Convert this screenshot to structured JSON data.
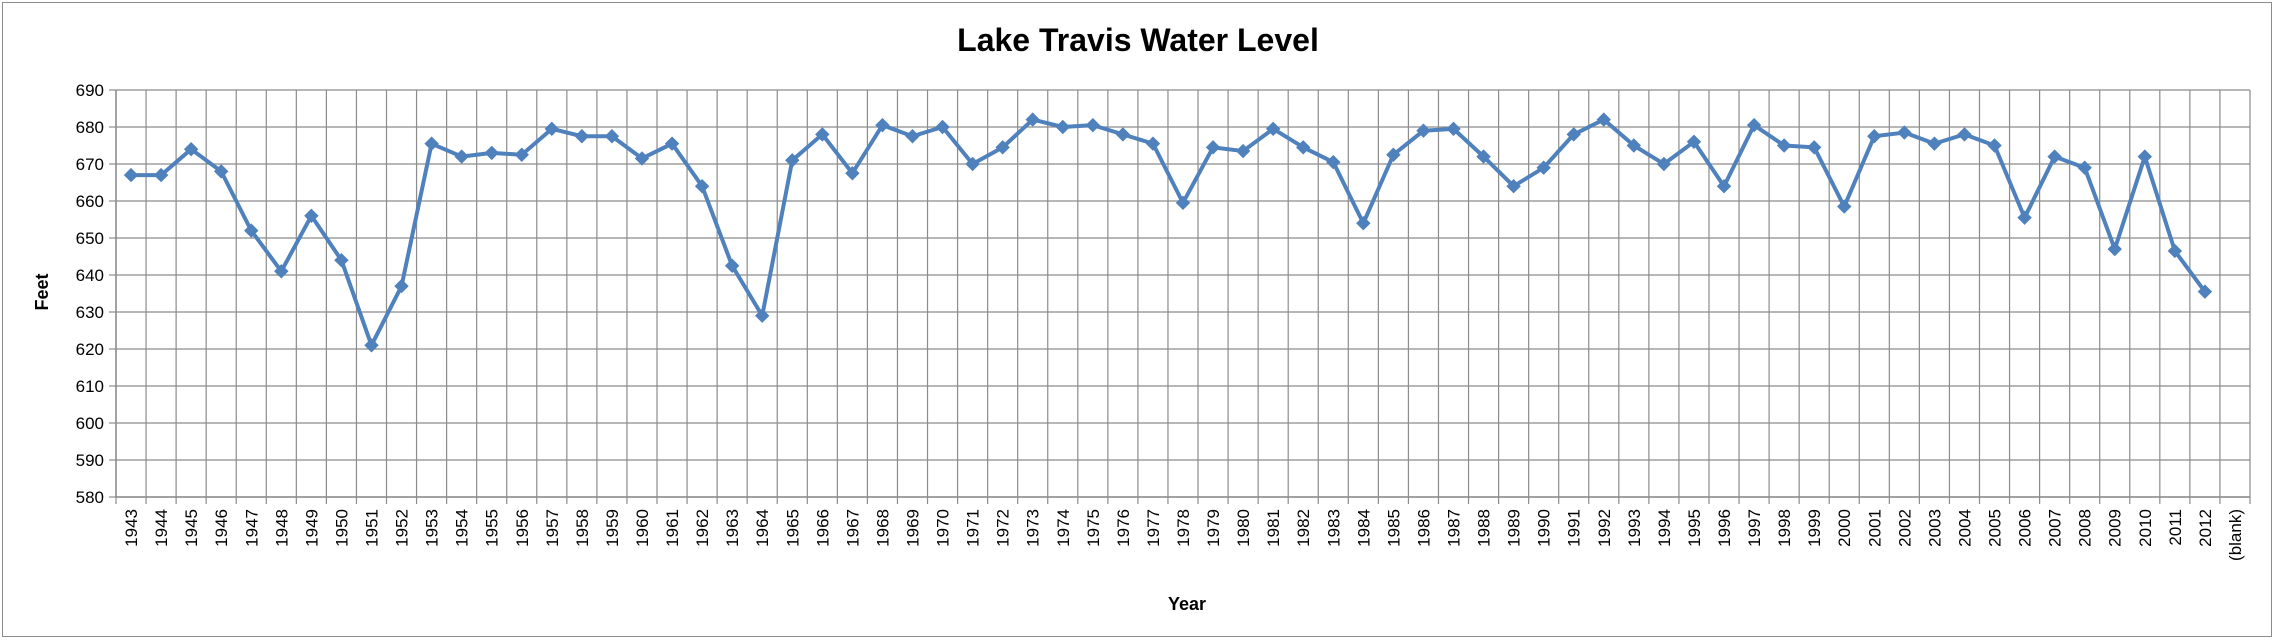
{
  "chart_data": {
    "type": "line",
    "title": "Lake Travis Water Level",
    "xlabel": "Year",
    "ylabel": "Feet",
    "ylim": [
      580,
      690
    ],
    "ytick_step": 10,
    "grid": true,
    "legend": "none",
    "categories": [
      "1943",
      "1944",
      "1945",
      "1946",
      "1947",
      "1948",
      "1949",
      "1950",
      "1951",
      "1952",
      "1953",
      "1954",
      "1955",
      "1956",
      "1957",
      "1958",
      "1959",
      "1960",
      "1961",
      "1962",
      "1963",
      "1964",
      "1965",
      "1966",
      "1967",
      "1968",
      "1969",
      "1970",
      "1971",
      "1972",
      "1973",
      "1974",
      "1975",
      "1976",
      "1977",
      "1978",
      "1979",
      "1980",
      "1981",
      "1982",
      "1983",
      "1984",
      "1985",
      "1986",
      "1987",
      "1988",
      "1989",
      "1990",
      "1991",
      "1992",
      "1993",
      "1994",
      "1995",
      "1996",
      "1997",
      "1998",
      "1999",
      "2000",
      "2001",
      "2002",
      "2003",
      "2004",
      "2005",
      "2006",
      "2007",
      "2008",
      "2009",
      "2010",
      "2011",
      "2012",
      "(blank)"
    ],
    "series": [
      {
        "color": "#4f81bd",
        "values": [
          667,
          667,
          674,
          668,
          652,
          641,
          656,
          644,
          621,
          637,
          675.5,
          672,
          673,
          672.5,
          679.5,
          677.5,
          677.5,
          671.5,
          675.5,
          664,
          642.5,
          629,
          671,
          678,
          667.5,
          680.5,
          677.5,
          680,
          670,
          674.5,
          682,
          680,
          680.5,
          678,
          675.5,
          659.5,
          674.5,
          673.5,
          679.5,
          674.5,
          670.5,
          654,
          672.5,
          679,
          679.5,
          672,
          664,
          669,
          678,
          682,
          675,
          670,
          676,
          664,
          680.5,
          675,
          674.5,
          658.5,
          677.5,
          678.5,
          675.5,
          678,
          675,
          655.5,
          672,
          669,
          647,
          672,
          646.5,
          635.5,
          null
        ]
      }
    ]
  }
}
